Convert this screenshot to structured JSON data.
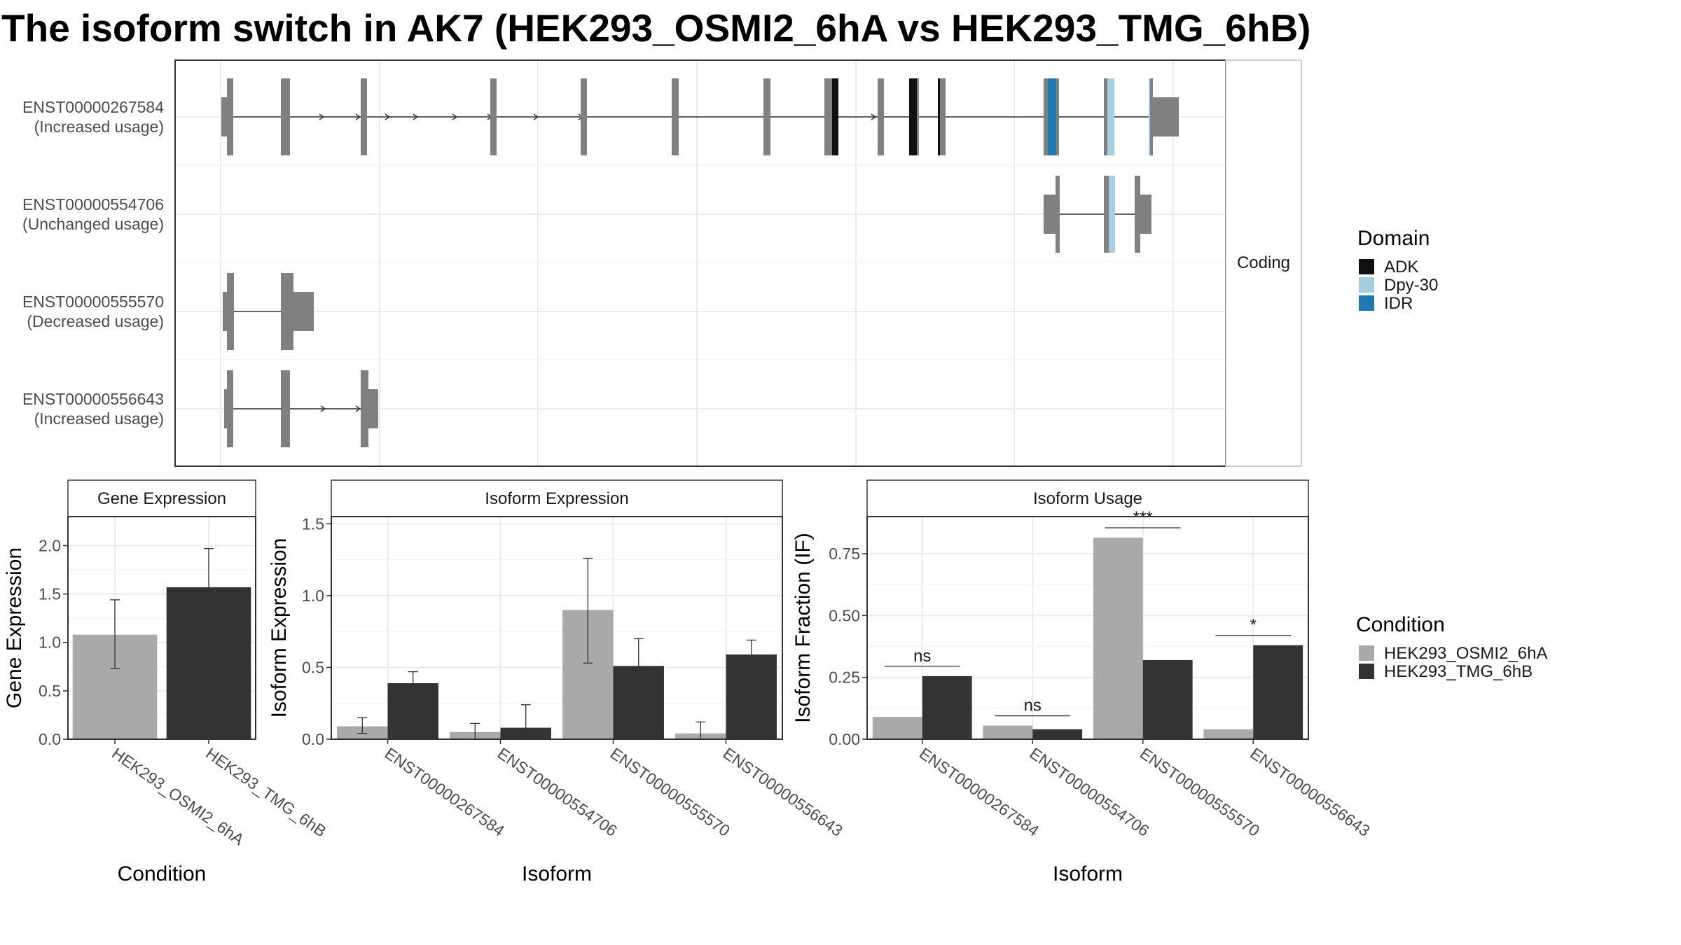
{
  "title": "The isoform switch in AK7 (HEK293_OSMI2_6hA vs HEK293_TMG_6hB)",
  "colors": {
    "cond_a": "#a9a9a9",
    "cond_b": "#333333",
    "exon": "#808080",
    "ADK": "#111111",
    "Dpy-30": "#a6cee3",
    "IDR": "#1f78b4"
  },
  "chart_data": [
    {
      "type": "gene-structure",
      "facet_label": "Coding",
      "legend_title": "Domain",
      "domains": [
        "ADK",
        "Dpy-30",
        "IDR"
      ],
      "transcripts": [
        {
          "id": "ENST00000267584",
          "label": "(Increased usage)"
        },
        {
          "id": "ENST00000554706",
          "label": "(Unchanged usage)"
        },
        {
          "id": "ENST00000555570",
          "label": "(Decreased usage)"
        },
        {
          "id": "ENST00000556643",
          "label": "(Increased usage)"
        }
      ]
    },
    {
      "type": "bar",
      "title": "Gene Expression",
      "xlabel": "Condition",
      "ylabel": "Gene Expression",
      "ylim": [
        0,
        2.3
      ],
      "yticks": [
        "0.0",
        "0.5",
        "1.0",
        "1.5",
        "2.0"
      ],
      "categories": [
        "HEK293_OSMI2_6hA",
        "HEK293_TMG_6hB"
      ],
      "values": [
        1.08,
        1.57
      ],
      "err_low": [
        0.73,
        1.16
      ],
      "err_high": [
        1.44,
        1.97
      ]
    },
    {
      "type": "bar",
      "title": "Isoform Expression",
      "xlabel": "Isoform",
      "ylabel": "Isoform Expression",
      "ylim": [
        0,
        1.55
      ],
      "yticks": [
        "0.0",
        "0.5",
        "1.0",
        "1.5"
      ],
      "categories": [
        "ENST00000267584",
        "ENST00000554706",
        "ENST00000555570",
        "ENST00000556643"
      ],
      "series": [
        {
          "name": "HEK293_OSMI2_6hA",
          "values": [
            0.09,
            0.05,
            0.9,
            0.04
          ],
          "err_low": [
            0.04,
            0.0,
            0.53,
            0.0
          ],
          "err_high": [
            0.15,
            0.11,
            1.26,
            0.12
          ]
        },
        {
          "name": "HEK293_TMG_6hB",
          "values": [
            0.39,
            0.08,
            0.51,
            0.59
          ],
          "err_low": [
            0.3,
            0.0,
            0.31,
            0.5
          ],
          "err_high": [
            0.47,
            0.24,
            0.7,
            0.69
          ]
        }
      ]
    },
    {
      "type": "bar",
      "title": "Isoform Usage",
      "xlabel": "Isoform",
      "ylabel": "Isoform Fraction (IF)",
      "ylim": [
        0,
        0.9
      ],
      "yticks": [
        "0.00",
        "0.25",
        "0.50",
        "0.75"
      ],
      "categories": [
        "ENST00000267584",
        "ENST00000554706",
        "ENST00000555570",
        "ENST00000556643"
      ],
      "series": [
        {
          "name": "HEK293_OSMI2_6hA",
          "values": [
            0.09,
            0.055,
            0.815,
            0.04
          ]
        },
        {
          "name": "HEK293_TMG_6hB",
          "values": [
            0.255,
            0.04,
            0.32,
            0.38
          ]
        }
      ],
      "significance": [
        "ns",
        "ns",
        "***",
        "*"
      ]
    }
  ],
  "condition_legend": {
    "title": "Condition",
    "items": [
      "HEK293_OSMI2_6hA",
      "HEK293_TMG_6hB"
    ]
  }
}
